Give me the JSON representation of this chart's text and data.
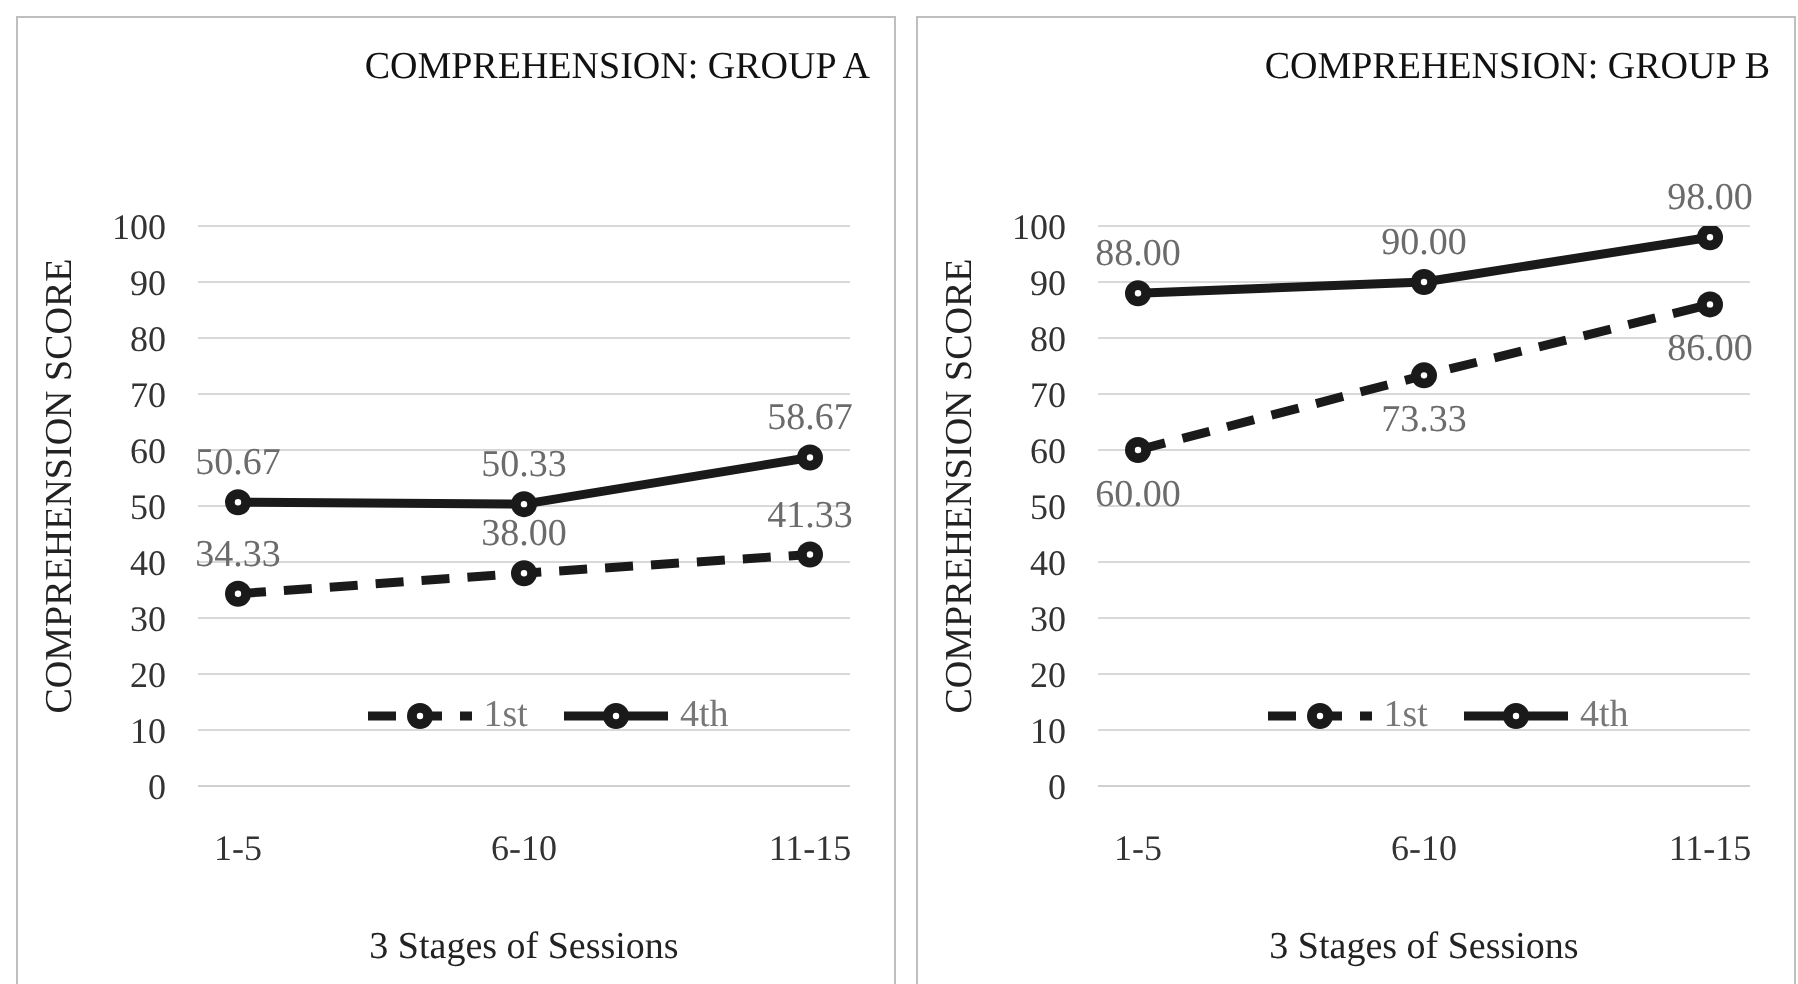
{
  "chart_data": [
    {
      "type": "line",
      "title": "COMPREHENSION: GROUP A",
      "xlabel": "3 Stages of Sessions",
      "ylabel": "COMPREHENSION SCORE",
      "categories": [
        "1-5",
        "6-10",
        "11-15"
      ],
      "series": [
        {
          "name": "1st",
          "color": "#1a1a1a",
          "line_style": "dashed",
          "values": [
            34.33,
            38.0,
            41.33
          ],
          "value_labels": [
            "34.33",
            "38.00",
            "41.33"
          ]
        },
        {
          "name": "4th",
          "color": "#1a1a1a",
          "line_style": "solid",
          "values": [
            50.67,
            50.33,
            58.67
          ],
          "value_labels": [
            "50.67",
            "50.33",
            "58.67"
          ]
        }
      ],
      "ylim": [
        0,
        100
      ],
      "yticks": [
        0,
        10,
        20,
        30,
        40,
        50,
        60,
        70,
        80,
        90,
        100
      ],
      "grid": "y",
      "legend": "bottom",
      "marker": "circle"
    },
    {
      "type": "line",
      "title": "COMPREHENSION: GROUP B",
      "xlabel": "3 Stages of Sessions",
      "ylabel": "COMPREHENSION SCORE",
      "categories": [
        "1-5",
        "6-10",
        "11-15"
      ],
      "series": [
        {
          "name": "1st",
          "color": "#1a1a1a",
          "line_style": "dashed",
          "values": [
            60.0,
            73.33,
            86.0
          ],
          "value_labels": [
            "60.00",
            "73.33",
            "86.00"
          ]
        },
        {
          "name": "4th",
          "color": "#1a1a1a",
          "line_style": "solid",
          "values": [
            88.0,
            90.0,
            98.0
          ],
          "value_labels": [
            "88.00",
            "90.00",
            "98.00"
          ]
        }
      ],
      "ylim": [
        0,
        100
      ],
      "yticks": [
        0,
        10,
        20,
        30,
        40,
        50,
        60,
        70,
        80,
        90,
        100
      ],
      "grid": "y",
      "legend": "bottom",
      "marker": "circle"
    }
  ]
}
